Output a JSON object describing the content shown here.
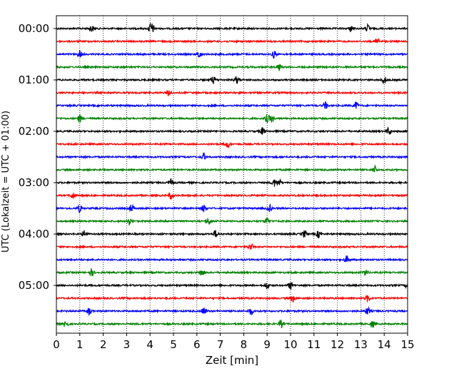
{
  "chart_data": {
    "type": "line",
    "title": "",
    "xlabel": "Zeit  [min]",
    "ylabel": "UTC (Lokalzeit = UTC + 01:00)",
    "xlim": [
      0,
      15
    ],
    "x_ticks": [
      "0",
      "1",
      "2",
      "3",
      "4",
      "5",
      "6",
      "7",
      "8",
      "9",
      "10",
      "11",
      "12",
      "13",
      "14",
      "15"
    ],
    "x_grid": "dotted vertical lines at each minute",
    "y_tick_labels": [
      "00:00",
      "01:00",
      "02:00",
      "03:00",
      "04:00",
      "05:00"
    ],
    "traces_per_hour": 4,
    "minutes_per_trace": 15,
    "color_cycle": [
      "#000000",
      "#ff0000",
      "#0000ff",
      "#008000"
    ],
    "series": [
      {
        "start": "00:00",
        "color": "#000000",
        "events_min": [
          1.5,
          4.0,
          4.1,
          12.6,
          13.3
        ]
      },
      {
        "start": "00:15",
        "color": "#ff0000",
        "events_min": [
          13.7
        ]
      },
      {
        "start": "00:30",
        "color": "#0000ff",
        "events_min": [
          1.0,
          6.1,
          9.3
        ]
      },
      {
        "start": "00:45",
        "color": "#008000",
        "events_min": [
          9.5
        ]
      },
      {
        "start": "01:00",
        "color": "#000000",
        "events_min": [
          6.7,
          7.7,
          14.0
        ]
      },
      {
        "start": "01:15",
        "color": "#ff0000",
        "events_min": [
          4.8
        ]
      },
      {
        "start": "01:30",
        "color": "#0000ff",
        "events_min": [
          11.5,
          12.8
        ]
      },
      {
        "start": "01:45",
        "color": "#008000",
        "events_min": [
          1.0,
          9.0,
          9.2
        ]
      },
      {
        "start": "02:00",
        "color": "#000000",
        "events_min": [
          8.8,
          14.2
        ]
      },
      {
        "start": "02:15",
        "color": "#ff0000",
        "events_min": [
          7.3
        ]
      },
      {
        "start": "02:30",
        "color": "#0000ff",
        "events_min": [
          6.3
        ]
      },
      {
        "start": "02:45",
        "color": "#008000",
        "events_min": [
          13.6
        ]
      },
      {
        "start": "03:00",
        "color": "#000000",
        "events_min": [
          4.9,
          9.3,
          9.5
        ]
      },
      {
        "start": "03:15",
        "color": "#ff0000",
        "events_min": [
          0.7,
          4.9
        ]
      },
      {
        "start": "03:30",
        "color": "#0000ff",
        "events_min": [
          1.0,
          3.2,
          6.3,
          9.1
        ]
      },
      {
        "start": "03:45",
        "color": "#008000",
        "events_min": [
          3.1,
          6.5,
          9.0
        ]
      },
      {
        "start": "04:00",
        "color": "#000000",
        "events_min": [
          1.2,
          6.8,
          10.6,
          11.2
        ]
      },
      {
        "start": "04:15",
        "color": "#ff0000",
        "events_min": [
          8.3
        ]
      },
      {
        "start": "04:30",
        "color": "#0000ff",
        "events_min": [
          12.4
        ]
      },
      {
        "start": "04:45",
        "color": "#008000",
        "events_min": [
          1.5,
          6.2,
          13.2
        ]
      },
      {
        "start": "05:00",
        "color": "#000000",
        "events_min": [
          9.0,
          10.0,
          15.0
        ]
      },
      {
        "start": "05:15",
        "color": "#ff0000",
        "events_min": [
          10.1,
          13.3
        ]
      },
      {
        "start": "05:30",
        "color": "#0000ff",
        "events_min": [
          1.4,
          6.3,
          8.3,
          13.3
        ]
      },
      {
        "start": "05:45",
        "color": "#008000",
        "events_min": [
          0.4,
          9.6,
          13.5
        ]
      }
    ]
  }
}
